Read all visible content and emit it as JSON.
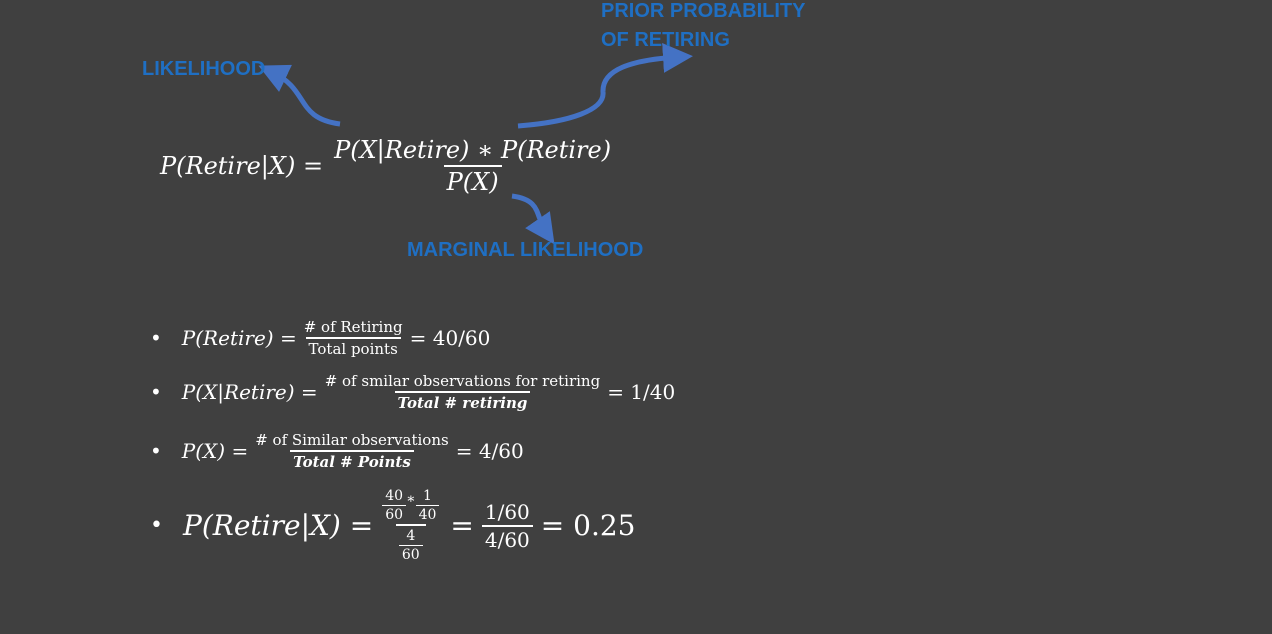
{
  "annotations": {
    "likelihood": "LIKELIHOOD",
    "prior_line1": "PRIOR PROBABILITY",
    "prior_line2": "OF RETIRING",
    "marginal": "MARGINAL LIKELIHOOD"
  },
  "colors": {
    "background": "#404040",
    "annotation_text": "#1f6fc3",
    "arrow": "#4472c4",
    "formula_text": "#ffffff"
  },
  "main_formula": {
    "lhs": "P(Retire|X) =",
    "numerator": "P(X|Retire) ∗ P(Retire)",
    "denominator": "P(X)"
  },
  "bullets": [
    {
      "lhs": "P(Retire) =",
      "num": "# of Retiring",
      "den": "Total points",
      "rhs": "=  40/60"
    },
    {
      "lhs": "P(X|Retire) =",
      "num": "# of smilar observations for retiring",
      "den": "Total # retiring",
      "rhs": "= 1/40"
    },
    {
      "lhs": "P(X) =",
      "num": "# of Similar observations",
      "den": "Total # Points",
      "rhs": "= 4/60"
    }
  ],
  "final": {
    "lhs": "P(Retire|X) =",
    "a_num": "40",
    "a_den": "60",
    "star": "∗",
    "b_num": "1",
    "b_den": "40",
    "c_num": "4",
    "c_den": "60",
    "eq1": "=",
    "d_num": "1/60",
    "d_den": "4/60",
    "rhs": "= 0.25"
  },
  "bullet_char": "•"
}
